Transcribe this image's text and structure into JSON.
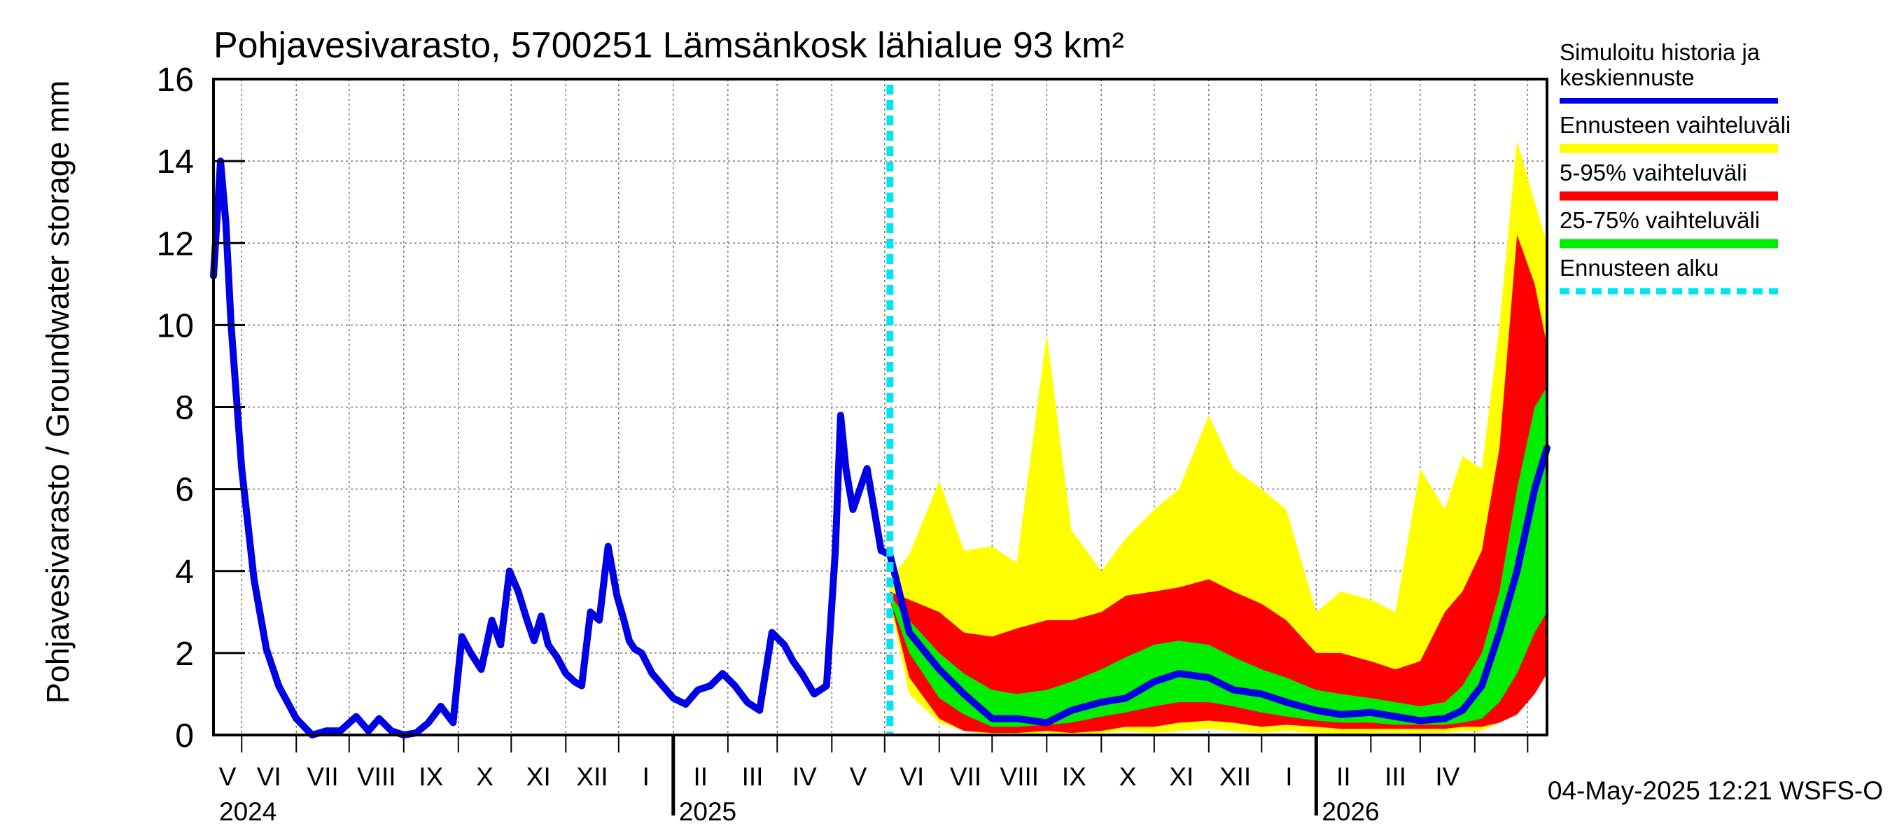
{
  "chart_data": {
    "type": "area",
    "title": "Pohjavesivarasto, 5700251 Lämsänkosk lähialue 93 km²",
    "ylabel": "Pohjavesivarasto / Groundwater storage   mm",
    "ylim": [
      0,
      16
    ],
    "yticks": [
      "0",
      "2",
      "4",
      "6",
      "8",
      "10",
      "12",
      "14",
      "16"
    ],
    "grid": true,
    "xlim": [
      "2024-04-15",
      "2026-05-12"
    ],
    "forecast_start": "2025-05-04",
    "months": [
      "V",
      "VI",
      "VII",
      "VIII",
      "IX",
      "X",
      "XI",
      "XII",
      "I",
      "II",
      "III",
      "IV",
      "V",
      "VI",
      "VII",
      "VIII",
      "IX",
      "X",
      "XI",
      "XII",
      "I",
      "II",
      "III",
      "IV"
    ],
    "years": [
      "2024",
      "2025",
      "2026"
    ],
    "timestamp": "04-May-2025 12:21 WSFS-O",
    "legend": {
      "placement": "right",
      "items": [
        {
          "label": "Simuloitu historia ja keskiennuste",
          "color": "#0000e6",
          "style": "line"
        },
        {
          "label": "Ennusteen vaihteluväli",
          "color": "#ffff00",
          "style": "band"
        },
        {
          "label": "5-95% vaihteluväli",
          "color": "#ff0000",
          "style": "band"
        },
        {
          "label": "25-75% vaihteluväli",
          "color": "#00ee00",
          "style": "band"
        },
        {
          "label": "Ennusteen alku",
          "color": "#00e5ee",
          "style": "dashed"
        }
      ]
    },
    "series": [
      {
        "name": "Simuloitu historia ja keskiennuste",
        "x": [
          "2024-04-15",
          "2024-04-19",
          "2024-04-22",
          "2024-04-25",
          "2024-05-01",
          "2024-05-08",
          "2024-05-15",
          "2024-05-22",
          "2024-06-01",
          "2024-06-10",
          "2024-06-18",
          "2024-06-26",
          "2024-07-05",
          "2024-07-12",
          "2024-07-18",
          "2024-07-25",
          "2024-08-01",
          "2024-08-08",
          "2024-08-15",
          "2024-08-22",
          "2024-08-29",
          "2024-09-03",
          "2024-09-08",
          "2024-09-14",
          "2024-09-20",
          "2024-09-25",
          "2024-09-30",
          "2024-10-05",
          "2024-10-10",
          "2024-10-14",
          "2024-10-18",
          "2024-10-22",
          "2024-10-27",
          "2024-11-01",
          "2024-11-06",
          "2024-11-10",
          "2024-11-15",
          "2024-11-20",
          "2024-11-25",
          "2024-11-30",
          "2024-12-04",
          "2024-12-07",
          "2024-12-10",
          "2024-12-14",
          "2024-12-20",
          "2024-12-26",
          "2025-01-01",
          "2025-01-08",
          "2025-01-15",
          "2025-01-22",
          "2025-01-29",
          "2025-02-05",
          "2025-02-12",
          "2025-02-19",
          "2025-02-26",
          "2025-03-05",
          "2025-03-10",
          "2025-03-15",
          "2025-03-22",
          "2025-03-29",
          "2025-04-03",
          "2025-04-06",
          "2025-04-09",
          "2025-04-13",
          "2025-04-17",
          "2025-04-21",
          "2025-04-25",
          "2025-04-29",
          "2025-05-04",
          "2025-05-15",
          "2025-06-01",
          "2025-06-15",
          "2025-07-01",
          "2025-07-15",
          "2025-08-01",
          "2025-08-15",
          "2025-09-01",
          "2025-09-15",
          "2025-10-01",
          "2025-10-15",
          "2025-11-01",
          "2025-11-15",
          "2025-12-01",
          "2025-12-15",
          "2026-01-01",
          "2026-01-15",
          "2026-02-01",
          "2026-02-15",
          "2026-03-01",
          "2026-03-15",
          "2026-03-25",
          "2026-04-05",
          "2026-04-15",
          "2026-04-25",
          "2026-05-05",
          "2026-05-12"
        ],
        "values": [
          11.2,
          14.0,
          12.5,
          10.0,
          6.5,
          3.8,
          2.1,
          1.2,
          0.4,
          0.0,
          0.1,
          0.1,
          0.45,
          0.1,
          0.4,
          0.1,
          0.0,
          0.05,
          0.3,
          0.7,
          0.3,
          2.4,
          2.0,
          1.6,
          2.8,
          2.2,
          4.0,
          3.5,
          2.8,
          2.3,
          2.9,
          2.2,
          1.9,
          1.5,
          1.3,
          1.2,
          3.0,
          2.8,
          4.6,
          3.4,
          2.8,
          2.3,
          2.1,
          2.0,
          1.5,
          1.2,
          0.9,
          0.75,
          1.1,
          1.2,
          1.5,
          1.2,
          0.8,
          0.6,
          2.5,
          2.2,
          1.8,
          1.5,
          1.0,
          1.2,
          4.5,
          7.8,
          6.5,
          5.5,
          6.0,
          6.5,
          5.5,
          4.5,
          4.4,
          2.5,
          1.6,
          1.0,
          0.4,
          0.4,
          0.3,
          0.6,
          0.8,
          0.9,
          1.3,
          1.5,
          1.4,
          1.1,
          1.0,
          0.8,
          0.6,
          0.5,
          0.55,
          0.45,
          0.35,
          0.4,
          0.6,
          1.2,
          2.5,
          4.0,
          6.0,
          7.0
        ]
      }
    ],
    "bands": [
      {
        "name": "Ennusteen vaihteluväli",
        "x": [
          "2025-05-04",
          "2025-05-15",
          "2025-06-01",
          "2025-06-15",
          "2025-07-01",
          "2025-07-15",
          "2025-08-01",
          "2025-08-15",
          "2025-09-01",
          "2025-09-15",
          "2025-10-01",
          "2025-10-15",
          "2025-11-01",
          "2025-11-15",
          "2025-12-01",
          "2025-12-15",
          "2026-01-01",
          "2026-01-15",
          "2026-02-01",
          "2026-02-15",
          "2026-03-01",
          "2026-03-15",
          "2026-03-25",
          "2026-04-05",
          "2026-04-15",
          "2026-04-25",
          "2026-05-05",
          "2026-05-12"
        ],
        "low": [
          3.2,
          1.0,
          0.3,
          0.1,
          0.0,
          0.0,
          0.05,
          0.0,
          0.05,
          0.1,
          0.05,
          0.1,
          0.15,
          0.1,
          0.05,
          0.1,
          0.05,
          0.0,
          0.05,
          0.05,
          0.05,
          0.05,
          0.1,
          0.1,
          0.3,
          0.5,
          1.5,
          1.5
        ],
        "high": [
          3.8,
          4.4,
          6.2,
          4.5,
          4.6,
          4.2,
          9.8,
          5.0,
          4.0,
          4.8,
          5.5,
          6.0,
          7.8,
          6.5,
          6.0,
          5.5,
          3.0,
          3.5,
          3.3,
          3.0,
          6.5,
          5.5,
          6.8,
          6.5,
          10.0,
          14.5,
          13.0,
          12.0
        ]
      },
      {
        "name": "5-95% vaihteluväli",
        "x": [
          "2025-05-04",
          "2025-05-15",
          "2025-06-01",
          "2025-06-15",
          "2025-07-01",
          "2025-07-15",
          "2025-08-01",
          "2025-08-15",
          "2025-09-01",
          "2025-09-15",
          "2025-10-01",
          "2025-10-15",
          "2025-11-01",
          "2025-11-15",
          "2025-12-01",
          "2025-12-15",
          "2026-01-01",
          "2026-01-15",
          "2026-02-01",
          "2026-02-15",
          "2026-03-01",
          "2026-03-15",
          "2026-03-25",
          "2026-04-05",
          "2026-04-15",
          "2026-04-25",
          "2026-05-05",
          "2026-05-12"
        ],
        "low": [
          3.3,
          1.4,
          0.4,
          0.1,
          0.05,
          0.05,
          0.1,
          0.05,
          0.1,
          0.2,
          0.2,
          0.3,
          0.35,
          0.3,
          0.2,
          0.25,
          0.2,
          0.15,
          0.15,
          0.15,
          0.15,
          0.15,
          0.2,
          0.2,
          0.3,
          0.5,
          1.0,
          1.5
        ],
        "high": [
          3.5,
          3.3,
          3.0,
          2.5,
          2.4,
          2.6,
          2.8,
          2.8,
          3.0,
          3.4,
          3.5,
          3.6,
          3.8,
          3.5,
          3.2,
          2.8,
          2.0,
          2.0,
          1.8,
          1.6,
          1.8,
          3.0,
          3.5,
          4.5,
          7.0,
          12.2,
          11.0,
          9.5
        ]
      },
      {
        "name": "25-75% vaihteluväli",
        "x": [
          "2025-05-04",
          "2025-05-15",
          "2025-06-01",
          "2025-06-15",
          "2025-07-01",
          "2025-07-15",
          "2025-08-01",
          "2025-08-15",
          "2025-09-01",
          "2025-09-15",
          "2025-10-01",
          "2025-10-15",
          "2025-11-01",
          "2025-11-15",
          "2025-12-01",
          "2025-12-15",
          "2026-01-01",
          "2026-01-15",
          "2026-02-01",
          "2026-02-15",
          "2026-03-01",
          "2026-03-15",
          "2026-03-25",
          "2026-04-05",
          "2026-04-15",
          "2026-04-25",
          "2026-05-05",
          "2026-05-12"
        ],
        "low": [
          3.3,
          2.0,
          0.9,
          0.5,
          0.2,
          0.2,
          0.25,
          0.3,
          0.45,
          0.55,
          0.7,
          0.8,
          0.8,
          0.7,
          0.55,
          0.45,
          0.35,
          0.3,
          0.3,
          0.25,
          0.25,
          0.25,
          0.3,
          0.4,
          0.8,
          1.5,
          2.5,
          3.0
        ],
        "high": [
          3.4,
          2.8,
          2.0,
          1.5,
          1.1,
          1.0,
          1.1,
          1.3,
          1.6,
          1.9,
          2.2,
          2.3,
          2.2,
          1.9,
          1.6,
          1.4,
          1.1,
          1.0,
          0.9,
          0.8,
          0.7,
          0.8,
          1.2,
          2.0,
          3.5,
          6.0,
          8.0,
          8.5
        ]
      }
    ]
  }
}
